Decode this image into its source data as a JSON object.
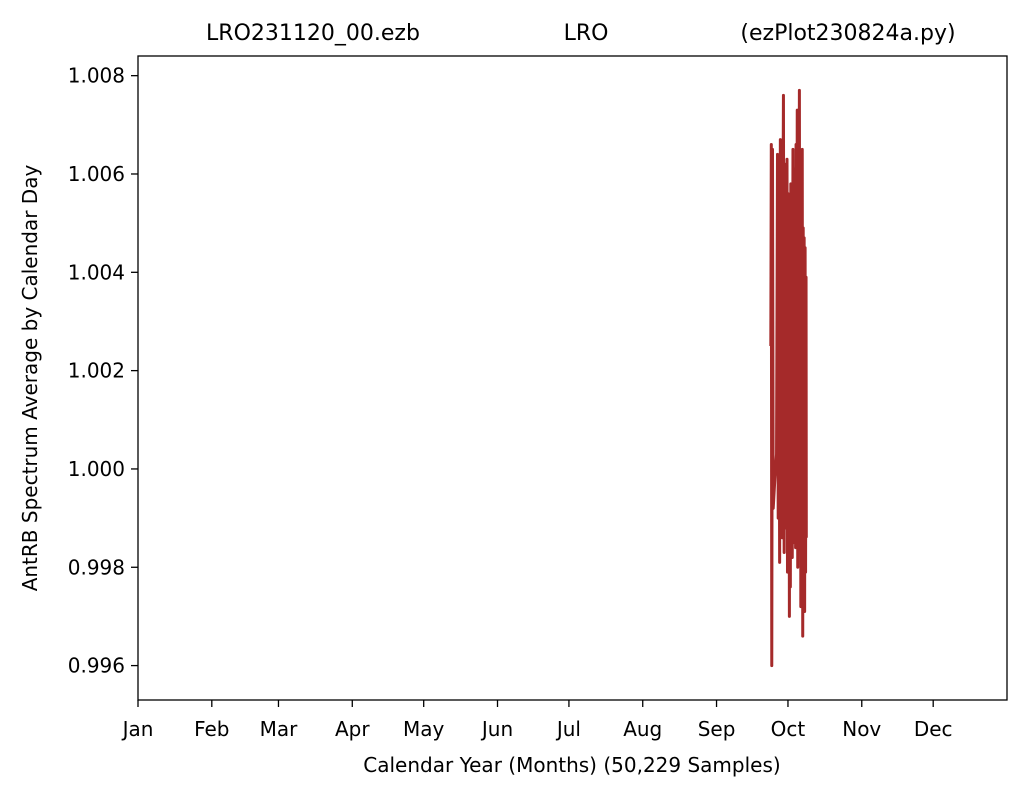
{
  "chart_data": {
    "type": "line",
    "title_parts": [
      "LRO231120_00.ezb",
      "LRO",
      "(ezPlot230824a.py)"
    ],
    "xlabel": "Calendar Year (Months) (50,229 Samples)",
    "ylabel": "AntRB Spectrum Average by Calendar Day",
    "x_unit": "day of year",
    "xlim": [
      1,
      366
    ],
    "ylim": [
      0.9953,
      1.0084
    ],
    "x_ticks": [
      {
        "label": "Jan",
        "day": 1
      },
      {
        "label": "Feb",
        "day": 32
      },
      {
        "label": "Mar",
        "day": 60
      },
      {
        "label": "Apr",
        "day": 91
      },
      {
        "label": "May",
        "day": 121
      },
      {
        "label": "Jun",
        "day": 152
      },
      {
        "label": "Jul",
        "day": 182
      },
      {
        "label": "Aug",
        "day": 213
      },
      {
        "label": "Sep",
        "day": 244
      },
      {
        "label": "Oct",
        "day": 274
      },
      {
        "label": "Nov",
        "day": 305
      },
      {
        "label": "Dec",
        "day": 335
      }
    ],
    "y_ticks": [
      "0.996",
      "0.998",
      "1.000",
      "1.002",
      "1.004",
      "1.006",
      "1.008"
    ],
    "grid": false,
    "series": [
      {
        "color": "#a52a2a",
        "points": [
          [
            266.8,
            1.0025
          ],
          [
            267.0,
            1.0066
          ],
          [
            267.2,
            0.996
          ],
          [
            267.5,
            1.0065
          ],
          [
            267.8,
            0.9992
          ],
          [
            268.5,
            0.9998
          ],
          [
            269.2,
            1.0003
          ],
          [
            269.6,
            1.0064
          ],
          [
            269.9,
            0.999
          ],
          [
            270.2,
            1.0047
          ],
          [
            270.5,
            0.9981
          ],
          [
            270.8,
            1.0067
          ],
          [
            271.0,
            0.9995
          ],
          [
            271.3,
            1.003
          ],
          [
            271.6,
            0.9986
          ],
          [
            271.9,
            1.0052
          ],
          [
            272.1,
            1.0076
          ],
          [
            272.4,
            0.9983
          ],
          [
            272.6,
            1.0062
          ],
          [
            272.9,
            0.9992
          ],
          [
            273.1,
            1.0054
          ],
          [
            273.3,
            0.9988
          ],
          [
            273.6,
            1.0063
          ],
          [
            273.8,
            0.9979
          ],
          [
            274.0,
            1.0056
          ],
          [
            274.2,
            0.9984
          ],
          [
            274.4,
            1.0051
          ],
          [
            274.6,
            0.997
          ],
          [
            274.8,
            1.0055
          ],
          [
            275.0,
            0.9976
          ],
          [
            275.2,
            1.0058
          ],
          [
            275.4,
            0.999
          ],
          [
            275.6,
            1.0056
          ],
          [
            275.8,
            0.9982
          ],
          [
            276.1,
            1.0065
          ],
          [
            276.3,
            0.9997
          ],
          [
            276.5,
            1.0061
          ],
          [
            276.8,
            0.9985
          ],
          [
            277.0,
            1.0058
          ],
          [
            277.2,
            0.9984
          ],
          [
            277.4,
            1.0066
          ],
          [
            277.6,
            0.9991
          ],
          [
            277.9,
            1.0073
          ],
          [
            278.1,
            0.998
          ],
          [
            278.3,
            1.0051
          ],
          [
            278.5,
            0.9993
          ],
          [
            278.8,
            1.0077
          ],
          [
            279.0,
            0.9984
          ],
          [
            279.2,
            1.0063
          ],
          [
            279.4,
            0.9972
          ],
          [
            279.6,
            1.0055
          ],
          [
            279.8,
            0.9987
          ],
          [
            280.0,
            1.0065
          ],
          [
            280.2,
            0.9966
          ],
          [
            280.4,
            1.0049
          ],
          [
            280.6,
            0.9977
          ],
          [
            280.8,
            1.0047
          ],
          [
            281.0,
            0.9971
          ],
          [
            281.2,
            1.0045
          ],
          [
            281.4,
            0.9979
          ],
          [
            281.6,
            1.0039
          ],
          [
            281.7,
            0.9986
          ]
        ]
      }
    ]
  }
}
